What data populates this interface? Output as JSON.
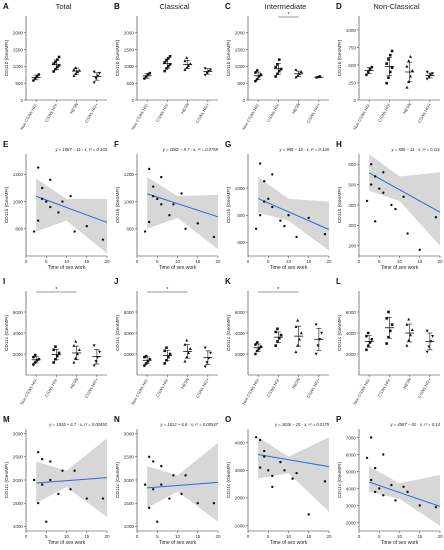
{
  "chart_data": [
    {
      "letter": "A",
      "title": "Total",
      "type": "scatter",
      "variant": "cat",
      "ylabel": "CD11b (GeoMFI)",
      "ylim": [
        0,
        2500
      ],
      "yticks": [
        0,
        500,
        1000,
        1500,
        2000
      ],
      "categories": [
        "Non CSWs HIV-",
        "CSWs HIV-",
        "HESN",
        "CSWs HIV+"
      ],
      "groups": [
        {
          "points": [
            580,
            650,
            700,
            760
          ],
          "mean": 670,
          "sd": 70
        },
        {
          "points": [
            850,
            920,
            980,
            1030,
            1080,
            1130,
            1200,
            1280
          ],
          "mean": 1050,
          "sd": 140
        },
        {
          "points": [
            720,
            780,
            840,
            880,
            900,
            960
          ],
          "mean": 860,
          "sd": 90
        },
        {
          "points": [
            520,
            650,
            720,
            800,
            840
          ],
          "mean": 700,
          "sd": 110
        }
      ],
      "sig": []
    },
    {
      "letter": "B",
      "title": "Classical",
      "type": "scatter",
      "variant": "cat",
      "ylabel": "CD11b (GeoMFI)",
      "ylim": [
        0,
        2500
      ],
      "yticks": [
        0,
        500,
        1000,
        1500,
        2000
      ],
      "categories": [
        "Non CSWs HIV-",
        "CSWs HIV-",
        "HESN",
        "CSWs HIV+"
      ],
      "groups": [
        {
          "points": [
            640,
            700,
            760,
            800
          ],
          "mean": 720,
          "sd": 70
        },
        {
          "points": [
            860,
            940,
            1000,
            1060,
            1120,
            1180,
            1240,
            1300
          ],
          "mean": 1080,
          "sd": 140
        },
        {
          "points": [
            900,
            960,
            1020,
            1080,
            1160,
            1260
          ],
          "mean": 1060,
          "sd": 120
        },
        {
          "points": [
            740,
            800,
            860,
            900,
            940
          ],
          "mean": 850,
          "sd": 80
        }
      ],
      "sig": []
    },
    {
      "letter": "C",
      "title": "Intermediate",
      "type": "scatter",
      "variant": "cat",
      "ylabel": "CD11b (GeoMFI)",
      "ylim": [
        0,
        2500
      ],
      "yticks": [
        0,
        500,
        1000,
        1500,
        2000
      ],
      "categories": [
        "Non CSWs HIV-",
        "CSWs HIV-",
        "HESN",
        "CSWs HIV+"
      ],
      "groups": [
        {
          "points": [
            560,
            620,
            700,
            760,
            820,
            880
          ],
          "mean": 720,
          "sd": 110
        },
        {
          "points": [
            700,
            780,
            860,
            920,
            980,
            1060,
            1200
          ],
          "mean": 930,
          "sd": 160
        },
        {
          "points": [
            680,
            720,
            780,
            840,
            900
          ],
          "mean": 780,
          "sd": 80
        },
        {
          "points": [
            660,
            680,
            700
          ],
          "mean": 680,
          "sd": 20
        }
      ],
      "sig": [
        {
          "from": 1,
          "to": 2,
          "label": "*"
        }
      ]
    },
    {
      "letter": "D",
      "title": "Non-Classical",
      "type": "scatter",
      "variant": "cat",
      "ylabel": "CD11b (GeoMFI)",
      "ylim": [
        0,
        1200
      ],
      "yticks": [
        0,
        250,
        500,
        750,
        1000
      ],
      "categories": [
        "Non CSWs HIV-",
        "CSWs HIV-",
        "HESN",
        "CSWs HIV+"
      ],
      "groups": [
        {
          "points": [
            360,
            400,
            440,
            470
          ],
          "mean": 420,
          "sd": 45
        },
        {
          "points": [
            240,
            320,
            400,
            460,
            520,
            580,
            640,
            700
          ],
          "mean": 480,
          "sd": 130
        },
        {
          "points": [
            180,
            260,
            340,
            420,
            480,
            560,
            620
          ],
          "mean": 400,
          "sd": 140
        },
        {
          "points": [
            300,
            330,
            360,
            380,
            400
          ],
          "mean": 350,
          "sd": 35
        }
      ],
      "sig": []
    },
    {
      "letter": "E",
      "type": "scatter",
      "variant": "reg",
      "equation": "y = 1067 − 11 · x, r² = 0.103",
      "xlabel": "Time of sex work",
      "ylabel": "CD11b (GeoMFI)",
      "xlim": [
        0,
        20
      ],
      "ylim": [
        600,
        1350
      ],
      "yticks": [
        800,
        1000,
        1200
      ],
      "xticks": [
        0,
        5,
        10,
        15,
        20
      ],
      "x": [
        2,
        3,
        3,
        4,
        4,
        5,
        6,
        6,
        8,
        9,
        11,
        12,
        15,
        19
      ],
      "y": [
        780,
        860,
        1250,
        1100,
        1020,
        1000,
        960,
        1160,
        920,
        1000,
        1040,
        780,
        820,
        720
      ],
      "line": [
        1067,
        -11
      ],
      "band": [
        [
          2.5,
          780,
          1170
        ],
        [
          10,
          860,
          1020
        ],
        [
          20,
          620,
          1020
        ]
      ]
    },
    {
      "letter": "F",
      "type": "scatter",
      "variant": "reg",
      "equation": "y = 1082 − 9.7 · x, r² = 0.0769",
      "xlabel": "Time of sex work",
      "ylabel": "CD11b (GeoMFI)",
      "xlim": [
        0,
        20
      ],
      "ylim": [
        600,
        1350
      ],
      "yticks": [
        800,
        1000,
        1200
      ],
      "xticks": [
        0,
        5,
        10,
        15,
        20
      ],
      "x": [
        2,
        3,
        3,
        4,
        4,
        5,
        6,
        6,
        8,
        9,
        11,
        12,
        15,
        19
      ],
      "y": [
        780,
        850,
        1240,
        1110,
        1040,
        1020,
        980,
        1180,
        900,
        980,
        1060,
        800,
        840,
        740
      ],
      "line": [
        1082,
        -9.7
      ],
      "band": [
        [
          2.5,
          800,
          1180
        ],
        [
          10,
          880,
          1040
        ],
        [
          20,
          650,
          1050
        ]
      ]
    },
    {
      "letter": "G",
      "type": "scatter",
      "variant": "reg",
      "equation": "y = 955 − 13 · x, r² = 0.128",
      "xlabel": "Time of sex work",
      "ylabel": "CD11b (GeoMFI)",
      "xlim": [
        0,
        20
      ],
      "ylim": [
        500,
        1250
      ],
      "yticks": [
        600,
        800,
        1000
      ],
      "xticks": [
        0,
        5,
        10,
        15,
        20
      ],
      "x": [
        2,
        3,
        3,
        4,
        4,
        5,
        6,
        6,
        8,
        9,
        10,
        12,
        15,
        19
      ],
      "y": [
        700,
        800,
        1180,
        1050,
        900,
        920,
        860,
        1100,
        760,
        720,
        800,
        640,
        780,
        660
      ],
      "line": [
        955,
        -13
      ],
      "band": [
        [
          2.5,
          820,
          1080
        ],
        [
          10,
          760,
          920
        ],
        [
          20,
          540,
          900
        ]
      ]
    },
    {
      "letter": "H",
      "type": "scatter",
      "variant": "reg",
      "equation": "y = 585 − 11 · x, r² = 0.111",
      "xlabel": "Time of sex work",
      "ylabel": "CD11b (GeoMFI)",
      "xlim": [
        0,
        20
      ],
      "ylim": [
        150,
        650
      ],
      "yticks": [
        200,
        300,
        400,
        500,
        600
      ],
      "xticks": [
        0,
        5,
        10,
        15,
        20
      ],
      "x": [
        2,
        3,
        3,
        4,
        4,
        5,
        6,
        6,
        8,
        9,
        11,
        12,
        15,
        19
      ],
      "y": [
        420,
        500,
        600,
        540,
        320,
        480,
        460,
        560,
        400,
        380,
        440,
        260,
        180,
        340
      ],
      "line": [
        585,
        -11
      ],
      "band": [
        [
          2.5,
          470,
          650
        ],
        [
          10,
          420,
          540
        ],
        [
          20,
          200,
          560
        ]
      ]
    },
    {
      "letter": "I",
      "type": "scatter",
      "variant": "cat",
      "ylabel": "CD11c (GeoMFI)",
      "ylim": [
        0,
        8000
      ],
      "yticks": [
        2000,
        4000,
        6000
      ],
      "categories": [
        "Non CSWs HIV-",
        "CSWs HIV-",
        "HESN",
        "CSWs HIV+"
      ],
      "groups": [
        {
          "points": [
            1000,
            1200,
            1400,
            1500,
            1700,
            1900
          ],
          "mean": 1450,
          "sd": 300
        },
        {
          "points": [
            1200,
            1500,
            1800,
            2100,
            2400,
            2700
          ],
          "mean": 1950,
          "sd": 500
        },
        {
          "points": [
            1200,
            1600,
            2000,
            2400,
            2800,
            3200
          ],
          "mean": 2100,
          "sd": 650
        },
        {
          "points": [
            900,
            1300,
            1700,
            2200,
            2800
          ],
          "mean": 1750,
          "sd": 700
        }
      ],
      "sig": [
        {
          "from": 0,
          "to": 2,
          "label": "*"
        }
      ]
    },
    {
      "letter": "J",
      "type": "scatter",
      "variant": "cat",
      "ylabel": "CD11c (GeoMFI)",
      "ylim": [
        0,
        8000
      ],
      "yticks": [
        2000,
        4000,
        6000
      ],
      "categories": [
        "Non CSWs HIV-",
        "CSWs HIV-",
        "HESN",
        "CSWs HIV+"
      ],
      "groups": [
        {
          "points": [
            900,
            1100,
            1300,
            1500,
            1700,
            1800
          ],
          "mean": 1400,
          "sd": 320
        },
        {
          "points": [
            1100,
            1400,
            1700,
            2000,
            2300,
            2600
          ],
          "mean": 1850,
          "sd": 500
        },
        {
          "points": [
            1300,
            1700,
            2100,
            2500,
            2900,
            3300
          ],
          "mean": 2250,
          "sd": 650
        },
        {
          "points": [
            800,
            1200,
            1600,
            2100,
            2600
          ],
          "mean": 1650,
          "sd": 650
        }
      ],
      "sig": [
        {
          "from": 0,
          "to": 2,
          "label": "*"
        }
      ]
    },
    {
      "letter": "K",
      "type": "scatter",
      "variant": "cat",
      "ylabel": "CD11c (GeoMFI)",
      "ylim": [
        0,
        8000
      ],
      "yticks": [
        2000,
        4000,
        6000
      ],
      "categories": [
        "Non CSWs HIV-",
        "CSWs HIV-",
        "HESN",
        "CSWs HIV+"
      ],
      "groups": [
        {
          "points": [
            2000,
            2300,
            2500,
            2700,
            2900,
            3100
          ],
          "mean": 2600,
          "sd": 350
        },
        {
          "points": [
            2800,
            3200,
            3500,
            3800,
            4100,
            4400
          ],
          "mean": 3600,
          "sd": 500
        },
        {
          "points": [
            2200,
            2800,
            3400,
            4000,
            4600,
            5200
          ],
          "mean": 3700,
          "sd": 950
        },
        {
          "points": [
            2000,
            2800,
            3400,
            4000,
            4800
          ],
          "mean": 3400,
          "sd": 1050
        }
      ],
      "sig": [
        {
          "from": 0,
          "to": 2,
          "label": "*"
        }
      ]
    },
    {
      "letter": "L",
      "type": "scatter",
      "variant": "cat",
      "ylabel": "CD11c (GeoMFI)",
      "ylim": [
        0,
        8000
      ],
      "yticks": [
        2000,
        4000,
        6000
      ],
      "categories": [
        "Non CSWs HIV-",
        "CSWs HIV-",
        "HESN",
        "CSWs HIV+"
      ],
      "groups": [
        {
          "points": [
            2400,
            2800,
            3100,
            3400,
            3700,
            4000
          ],
          "mean": 3200,
          "sd": 550
        },
        {
          "points": [
            3000,
            3600,
            4200,
            4800,
            5400,
            6000
          ],
          "mean": 4500,
          "sd": 1000
        },
        {
          "points": [
            2800,
            3300,
            3800,
            4300,
            4800,
            5300
          ],
          "mean": 4000,
          "sd": 850
        },
        {
          "points": [
            2200,
            2700,
            3200,
            3700,
            4200
          ],
          "mean": 3200,
          "sd": 800
        }
      ],
      "sig": []
    },
    {
      "letter": "M",
      "type": "scatter",
      "variant": "reg",
      "equation": "y = 1918 + 6.7 · x, r² = 0.00493",
      "xlabel": "Time of sex work",
      "ylabel": "CD11c (GeoMFI)",
      "xlim": [
        0,
        20
      ],
      "ylim": [
        900,
        3100
      ],
      "yticks": [
        1000,
        1500,
        2000,
        2500,
        3000
      ],
      "xticks": [
        0,
        5,
        10,
        15,
        20
      ],
      "x": [
        2,
        3,
        3,
        4,
        4,
        5,
        6,
        6,
        8,
        9,
        11,
        12,
        15,
        19
      ],
      "y": [
        2000,
        1500,
        2600,
        2450,
        1900,
        1100,
        2000,
        2400,
        1700,
        2200,
        1800,
        2200,
        1600,
        1600
      ],
      "line": [
        1918,
        6.7
      ],
      "band": [
        [
          2.5,
          1500,
          2400
        ],
        [
          10,
          1850,
          2200
        ],
        [
          20,
          1200,
          2900
        ]
      ]
    },
    {
      "letter": "N",
      "type": "scatter",
      "variant": "reg",
      "equation": "y = 1812 + 6.8 · x, r² = 0.00547",
      "xlabel": "Time of sex work",
      "ylabel": "CD11c (GeoMFI)",
      "xlim": [
        0,
        20
      ],
      "ylim": [
        900,
        3100
      ],
      "yticks": [
        1000,
        1500,
        2000,
        2500,
        3000
      ],
      "xticks": [
        0,
        5,
        10,
        15,
        20
      ],
      "x": [
        2,
        3,
        3,
        4,
        4,
        5,
        6,
        6,
        8,
        9,
        11,
        12,
        15,
        19
      ],
      "y": [
        1900,
        1400,
        2500,
        2400,
        1800,
        1100,
        1900,
        2300,
        1600,
        2100,
        1700,
        2100,
        1500,
        1500
      ],
      "line": [
        1812,
        6.8
      ],
      "band": [
        [
          2.5,
          1400,
          2300
        ],
        [
          10,
          1750,
          2100
        ],
        [
          20,
          1100,
          2800
        ]
      ]
    },
    {
      "letter": "O",
      "type": "scatter",
      "variant": "reg",
      "equation": "y = 3636 − 25 · x, r² = 0.0179",
      "xlabel": "Time of sex work",
      "ylabel": "CD11c (GeoMFI)",
      "xlim": [
        0,
        20
      ],
      "ylim": [
        800,
        4500
      ],
      "yticks": [
        1000,
        2000,
        3000,
        4000
      ],
      "xticks": [
        0,
        5,
        10,
        15,
        20
      ],
      "x": [
        2,
        3,
        3,
        4,
        4,
        5,
        6,
        6,
        8,
        9,
        11,
        12,
        15,
        19
      ],
      "y": [
        4200,
        3100,
        4100,
        3700,
        3500,
        3000,
        2800,
        2400,
        3300,
        3000,
        2700,
        2900,
        1400,
        2600
      ],
      "line": [
        3636,
        -25
      ],
      "band": [
        [
          2.5,
          2700,
          4200
        ],
        [
          10,
          2900,
          3500
        ],
        [
          20,
          1500,
          4200
        ]
      ]
    },
    {
      "letter": "P",
      "type": "scatter",
      "variant": "reg",
      "equation": "y = 4587 − 82 · x, r² = 0.14",
      "xlabel": "Time of sex work",
      "ylabel": "CD11c (GeoMFI)",
      "xlim": [
        0,
        20
      ],
      "ylim": [
        1500,
        7500
      ],
      "yticks": [
        2000,
        3000,
        4000,
        5000,
        6000,
        7000
      ],
      "xticks": [
        0,
        5,
        10,
        15,
        20
      ],
      "x": [
        2,
        3,
        3,
        4,
        4,
        5,
        6,
        6,
        8,
        9,
        11,
        12,
        15,
        19
      ],
      "y": [
        5800,
        4500,
        7000,
        5200,
        3800,
        4000,
        3600,
        6000,
        4200,
        3300,
        4100,
        3800,
        3000,
        2900
      ],
      "line": [
        4587,
        -82
      ],
      "band": [
        [
          2.5,
          3800,
          5300
        ],
        [
          10,
          3400,
          4300
        ],
        [
          20,
          1800,
          4800
        ]
      ]
    }
  ]
}
